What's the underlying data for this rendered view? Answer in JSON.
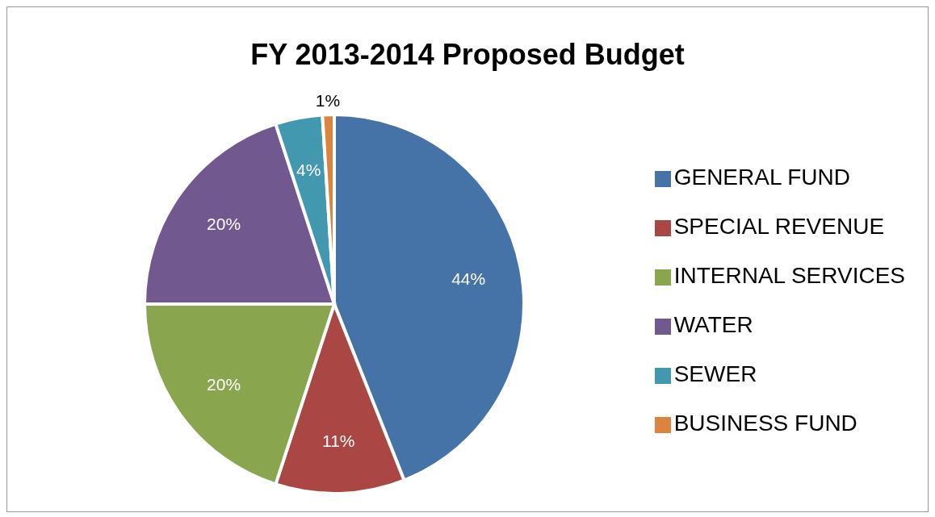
{
  "chart_data": {
    "type": "pie",
    "title": "FY 2013-2014 Proposed Budget",
    "categories": [
      "GENERAL FUND",
      "SPECIAL REVENUE",
      "INTERNAL SERVICES",
      "WATER",
      "SEWER",
      "BUSINESS FUND"
    ],
    "values": [
      44,
      11,
      20,
      20,
      4,
      1
    ],
    "value_labels": [
      "44%",
      "11%",
      "20%",
      "20%",
      "4%",
      "1%"
    ],
    "colors": [
      "#4572a7",
      "#aa4643",
      "#89a54e",
      "#71588f",
      "#4198af",
      "#db843d"
    ],
    "legend": "right"
  }
}
